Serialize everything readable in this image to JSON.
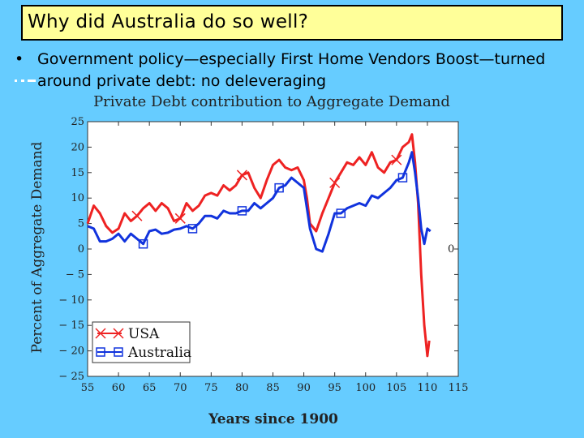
{
  "slide": {
    "title": "Why did Australia do so well?",
    "bullet_symbol": "•",
    "bullet": "Government policy—especially First Home Vendors Boost—turned around private debt: no deleveraging"
  },
  "chart_data": {
    "type": "line",
    "title": "Private Debt contribution to Aggregate Demand",
    "xlabel": "Years since 1900",
    "ylabel": "Percent of Aggregate Demand",
    "xlim": [
      55,
      115
    ],
    "ylim": [
      -25,
      25
    ],
    "xticks": [
      "55",
      "60",
      "65",
      "70",
      "75",
      "80",
      "85",
      "90",
      "95",
      "100",
      "105",
      "110",
      "115"
    ],
    "yticks": [
      "25",
      "20",
      "15",
      "10",
      "5",
      "0",
      "− 5",
      "− 10",
      "− 15",
      "− 20",
      "− 25"
    ],
    "right_axis_label": "0",
    "grid": false,
    "legend_position": "bottom-left",
    "series": [
      {
        "name": "USA",
        "color": "#ee2222",
        "marker": "x",
        "points": [
          [
            55,
            5
          ],
          [
            56,
            8.5
          ],
          [
            57,
            7
          ],
          [
            58,
            4.5
          ],
          [
            59,
            3.2
          ],
          [
            60,
            4
          ],
          [
            61,
            7
          ],
          [
            62,
            5.5
          ],
          [
            63,
            6.5
          ],
          [
            64,
            8
          ],
          [
            65,
            9
          ],
          [
            66,
            7.5
          ],
          [
            67,
            9
          ],
          [
            68,
            8
          ],
          [
            69,
            5.5
          ],
          [
            70,
            6
          ],
          [
            71,
            9
          ],
          [
            72,
            7.5
          ],
          [
            73,
            8.5
          ],
          [
            74,
            10.5
          ],
          [
            75,
            11
          ],
          [
            76,
            10.5
          ],
          [
            77,
            12.5
          ],
          [
            78,
            11.5
          ],
          [
            79,
            12.5
          ],
          [
            80,
            14.5
          ],
          [
            81,
            15
          ],
          [
            82,
            12
          ],
          [
            83,
            10
          ],
          [
            84,
            13.5
          ],
          [
            85,
            16.5
          ],
          [
            86,
            17.5
          ],
          [
            87,
            16
          ],
          [
            88,
            15.5
          ],
          [
            89,
            16
          ],
          [
            90,
            13.5
          ],
          [
            90.5,
            10
          ],
          [
            91,
            5
          ],
          [
            92,
            3.5
          ],
          [
            93,
            7
          ],
          [
            94,
            10
          ],
          [
            95,
            13
          ],
          [
            96,
            15
          ],
          [
            97,
            17
          ],
          [
            98,
            16.5
          ],
          [
            99,
            18
          ],
          [
            100,
            16.5
          ],
          [
            101,
            19
          ],
          [
            102,
            16
          ],
          [
            103,
            15
          ],
          [
            104,
            17
          ],
          [
            105,
            17.5
          ],
          [
            106,
            20
          ],
          [
            107,
            21
          ],
          [
            107.5,
            22.5
          ],
          [
            108,
            17
          ],
          [
            108.5,
            9
          ],
          [
            109,
            -5
          ],
          [
            109.5,
            -15
          ],
          [
            110,
            -21
          ],
          [
            110.3,
            -18
          ]
        ],
        "marker_x": [
          63,
          70,
          80,
          95,
          105
        ]
      },
      {
        "name": "Australia",
        "color": "#1133dd",
        "marker": "square",
        "points": [
          [
            55,
            4.5
          ],
          [
            56,
            4
          ],
          [
            57,
            1.5
          ],
          [
            58,
            1.5
          ],
          [
            59,
            2
          ],
          [
            60,
            3
          ],
          [
            61,
            1.5
          ],
          [
            62,
            3
          ],
          [
            63,
            2
          ],
          [
            64,
            1
          ],
          [
            65,
            3.5
          ],
          [
            66,
            3.8
          ],
          [
            67,
            3
          ],
          [
            68,
            3.2
          ],
          [
            69,
            3.8
          ],
          [
            70,
            4
          ],
          [
            71,
            4.5
          ],
          [
            72,
            4
          ],
          [
            73,
            5
          ],
          [
            74,
            6.5
          ],
          [
            75,
            6.5
          ],
          [
            76,
            6
          ],
          [
            77,
            7.5
          ],
          [
            78,
            7
          ],
          [
            79,
            7
          ],
          [
            80,
            7.5
          ],
          [
            81,
            7.5
          ],
          [
            82,
            9
          ],
          [
            83,
            8
          ],
          [
            84,
            9
          ],
          [
            85,
            10
          ],
          [
            86,
            12
          ],
          [
            87,
            12.5
          ],
          [
            88,
            14
          ],
          [
            89,
            13
          ],
          [
            90,
            12
          ],
          [
            91,
            4
          ],
          [
            92,
            0
          ],
          [
            93,
            -0.5
          ],
          [
            94,
            3
          ],
          [
            95,
            7
          ],
          [
            96,
            7
          ],
          [
            97,
            8
          ],
          [
            98,
            8.5
          ],
          [
            99,
            9
          ],
          [
            100,
            8.5
          ],
          [
            101,
            10.5
          ],
          [
            102,
            10
          ],
          [
            103,
            11
          ],
          [
            104,
            12
          ],
          [
            105,
            13.5
          ],
          [
            106,
            14
          ],
          [
            107,
            17
          ],
          [
            107.5,
            19
          ],
          [
            108,
            15
          ],
          [
            108.5,
            10
          ],
          [
            109,
            4
          ],
          [
            109.5,
            1
          ],
          [
            110,
            4
          ],
          [
            110.5,
            3.5
          ]
        ],
        "marker_x": [
          64,
          72,
          80,
          86,
          96,
          106
        ]
      }
    ]
  }
}
